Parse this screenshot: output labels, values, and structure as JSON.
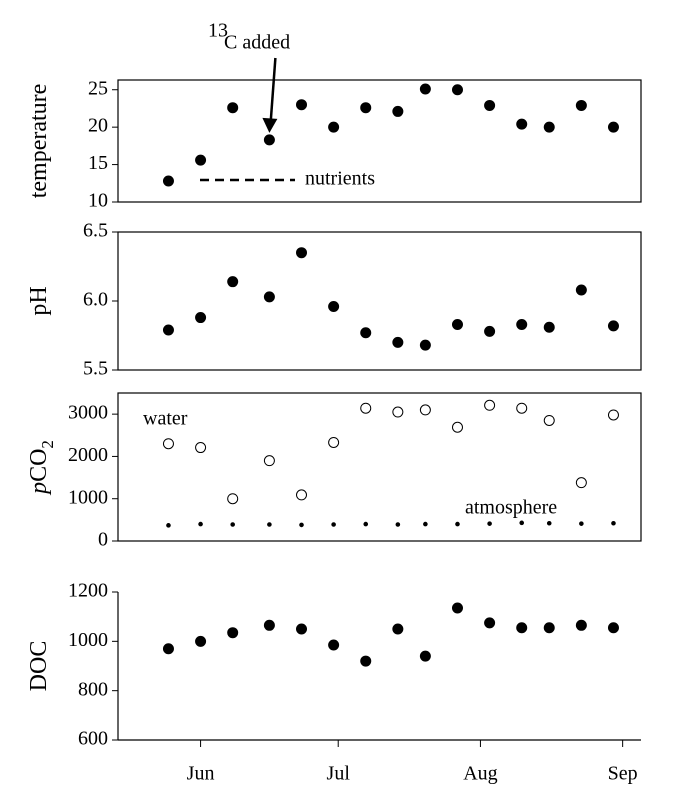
{
  "chart_data": [
    {
      "type": "line",
      "ylabel": [
        "temperature"
      ],
      "x": [
        -7,
        0,
        7,
        15,
        22,
        29,
        36,
        43,
        49,
        56,
        63,
        70,
        76,
        83,
        90
      ],
      "xlim": [
        -18,
        96
      ],
      "ylim": [
        10,
        26.3
      ],
      "yticks": [
        10,
        15,
        20,
        25
      ],
      "series": [
        {
          "color": "#000000",
          "marker_fill": "#000000",
          "linestyle": "solid",
          "values": [
            12.8,
            15.6,
            22.6,
            18.3,
            23.0,
            20.0,
            22.6,
            22.1,
            25.1,
            25.0,
            22.9,
            20.4,
            20.0,
            22.9,
            20.0
          ]
        }
      ],
      "legend_label": "nutrients",
      "annotation": {
        "sup": "13",
        "text": "C added",
        "index": 3
      }
    },
    {
      "type": "line",
      "ylabel": [
        "pH"
      ],
      "x": [
        -7,
        0,
        7,
        15,
        22,
        29,
        36,
        43,
        49,
        56,
        63,
        70,
        76,
        83,
        90
      ],
      "xlim": [
        -18,
        96
      ],
      "ylim": [
        5.5,
        6.5
      ],
      "yticks": [
        5.5,
        {
          "value": 6,
          "label": "6.0"
        },
        6.5
      ],
      "series": [
        {
          "color": "#000000",
          "marker_fill": "#000000",
          "linestyle": "solid",
          "values": [
            5.79,
            5.88,
            6.14,
            6.03,
            6.35,
            5.96,
            5.77,
            5.7,
            5.68,
            5.83,
            5.78,
            5.83,
            5.81,
            6.08,
            5.82
          ]
        }
      ]
    },
    {
      "type": "line",
      "ylabel": [
        "p",
        "CO",
        "2"
      ],
      "x": [
        -7,
        0,
        7,
        15,
        22,
        29,
        36,
        43,
        49,
        56,
        63,
        70,
        76,
        83,
        90
      ],
      "xlim": [
        -18,
        96
      ],
      "ylim": [
        0,
        3500
      ],
      "yticks": [
        0,
        1000,
        2000,
        3000
      ],
      "series": [
        {
          "name": "water",
          "color": "#000000",
          "marker_fill": "#ffffff",
          "linestyle": "solid",
          "values": [
            2300,
            2210,
            1000,
            1900,
            1090,
            2330,
            3140,
            3050,
            3100,
            2690,
            3210,
            3140,
            2850,
            1380,
            2980
          ]
        },
        {
          "name": "atmosphere",
          "color": "#000000",
          "marker_fill": "#000000",
          "linestyle": "dotted",
          "values": [
            370,
            400,
            390,
            390,
            380,
            390,
            400,
            390,
            400,
            400,
            410,
            430,
            420,
            410,
            420
          ]
        }
      ]
    },
    {
      "type": "line",
      "ylabel": [
        "DOC"
      ],
      "x": [
        -7,
        0,
        7,
        15,
        22,
        29,
        36,
        43,
        49,
        56,
        63,
        70,
        76,
        83,
        90
      ],
      "xlim": [
        -18,
        96
      ],
      "ylim": [
        600,
        1200
      ],
      "yticks": [
        600,
        800,
        1000,
        1200
      ],
      "xticks": [
        {
          "value": 0,
          "label": "Jun"
        },
        {
          "value": 30,
          "label": "Jul"
        },
        {
          "value": 61,
          "label": "Aug"
        },
        {
          "value": 92,
          "label": "Sep"
        }
      ],
      "series": [
        {
          "color": "#000000",
          "marker_fill": "#000000",
          "linestyle": "solid",
          "values": [
            970,
            1000,
            1035,
            1065,
            1050,
            985,
            920,
            1050,
            940,
            1135,
            1075,
            1055,
            1055,
            1065,
            1055
          ]
        }
      ]
    }
  ]
}
